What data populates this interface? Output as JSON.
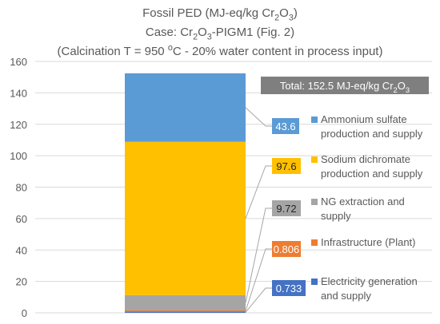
{
  "chart_data": {
    "type": "bar",
    "stacked": true,
    "title_lines": [
      [
        "Fossil PED (MJ-eq/kg Cr",
        {
          "sub": "2"
        },
        "O",
        {
          "sub": "3"
        },
        ")"
      ],
      [
        "Case: Cr",
        {
          "sub": "2"
        },
        "O",
        {
          "sub": "3"
        },
        "-PIGM1 (Fig. 2)"
      ],
      [
        "(Calcination T = 950 ",
        {
          "sup": "o"
        },
        "C - 20% water content in process input)"
      ]
    ],
    "categories": [
      ""
    ],
    "ylim": [
      0,
      160
    ],
    "yticks": [
      0,
      20,
      40,
      60,
      80,
      100,
      120,
      140,
      160
    ],
    "gridlines": true,
    "legend_position": "right",
    "total": {
      "value": 152.5,
      "label": [
        "Total: 152.5 MJ-eq/kg Cr",
        {
          "sub": "2"
        },
        "O",
        {
          "sub": "3"
        }
      ]
    },
    "series": [
      {
        "name": "Electricity generation and supply",
        "legend_lines": [
          "Electricity generation",
          "and supply"
        ],
        "value": 0.733,
        "label": "0.733",
        "color": "#4472c4",
        "label_text_color": "#ffffff"
      },
      {
        "name": "Infrastructure (Plant)",
        "legend_lines": [
          "Infrastructure (Plant)"
        ],
        "value": 0.806,
        "label": "0.806",
        "color": "#ed7d31",
        "label_text_color": "#ffffff"
      },
      {
        "name": "NG extraction and supply",
        "legend_lines": [
          "NG extraction and",
          "supply"
        ],
        "value": 9.72,
        "label": "9.72",
        "color": "#a5a5a5",
        "label_text_color": "#262626"
      },
      {
        "name": "Sodium dichromate production and supply",
        "legend_lines": [
          "Sodium dichromate",
          "production and supply"
        ],
        "value": 97.6,
        "label": "97.6",
        "color": "#ffc000",
        "label_text_color": "#262626"
      },
      {
        "name": "Ammonium sulfate production and supply",
        "legend_lines": [
          "Ammonium sulfate",
          "production and supply"
        ],
        "value": 43.6,
        "label": "43.6",
        "color": "#5b9bd5",
        "label_text_color": "#ffffff"
      }
    ]
  },
  "colors": {
    "grid": "#d9d9d9",
    "text": "#595959",
    "total_box": "#7f7f7f",
    "leader": "#a6a6a6"
  }
}
